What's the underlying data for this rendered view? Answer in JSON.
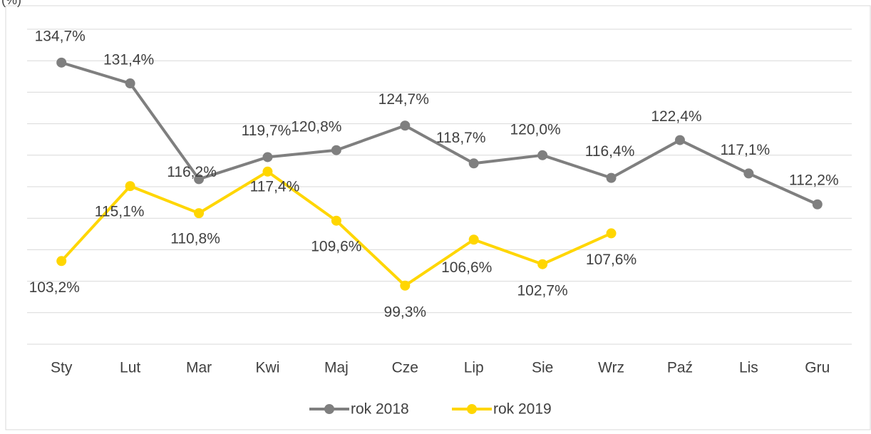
{
  "chart_data": {
    "type": "line",
    "y_label": "(%)",
    "categories": [
      "Sty",
      "Lut",
      "Mar",
      "Kwi",
      "Maj",
      "Cze",
      "Lip",
      "Sie",
      "Wrz",
      "Paź",
      "Lis",
      "Gru"
    ],
    "series": [
      {
        "name": "rok 2018",
        "color": "#7f7f7f",
        "values": [
          134.7,
          131.4,
          116.2,
          119.7,
          120.8,
          124.7,
          118.7,
          120.0,
          116.4,
          122.4,
          117.1,
          112.2
        ],
        "value_labels": [
          "134,7%",
          "131,4%",
          "116,2%",
          "119,7%",
          "120,8%",
          "124,7%",
          "118,7%",
          "120,0%",
          "116,4%",
          "122,4%",
          "117,1%",
          "112,2%"
        ]
      },
      {
        "name": "rok 2019",
        "color": "#ffd600",
        "values": [
          103.2,
          115.1,
          110.8,
          117.4,
          109.6,
          99.3,
          106.6,
          102.7,
          107.6,
          null,
          null,
          null
        ],
        "value_labels": [
          "103,2%",
          "115,1%",
          "110,8%",
          "117,4%",
          "109,6%",
          "99,3%",
          "106,6%",
          "102,7%",
          "107,6%",
          null,
          null,
          null
        ]
      }
    ],
    "ylim": [
      90,
      140
    ],
    "yticks": [
      90,
      95,
      100,
      105,
      110,
      115,
      120,
      125,
      130,
      135,
      140
    ],
    "grid": true
  }
}
